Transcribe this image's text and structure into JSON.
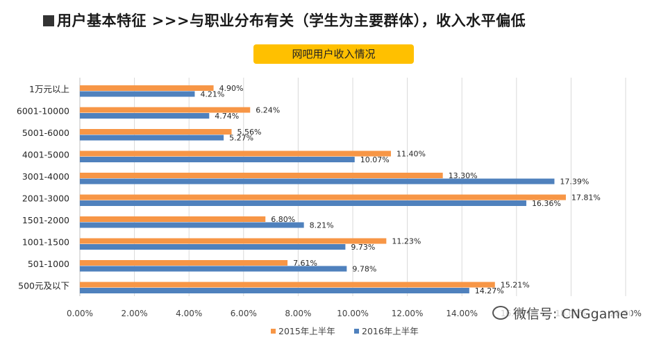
{
  "page": {
    "title": "用户基本特征 >>>与职业分布有关（学生为主要群体），收入水平偏低",
    "watermark": "微信号: CNGgame"
  },
  "chart_data": {
    "type": "bar",
    "orientation": "horizontal",
    "title": "网吧用户收入情况",
    "categories": [
      "1万元以上",
      "6001-10000",
      "5001-6000",
      "4001-5000",
      "3001-4000",
      "2001-3000",
      "1501-2000",
      "1001-1500",
      "501-1000",
      "500元及以下"
    ],
    "series": [
      {
        "name": "2015年上半年",
        "color": "#F79646",
        "values": [
          4.9,
          6.24,
          5.56,
          11.4,
          13.3,
          17.81,
          6.8,
          11.23,
          7.61,
          15.21
        ]
      },
      {
        "name": "2016年上半年",
        "color": "#4F81BD",
        "values": [
          4.21,
          4.74,
          5.27,
          10.07,
          17.39,
          16.36,
          8.21,
          9.73,
          9.78,
          14.27
        ]
      }
    ],
    "data_labels": [
      [
        "4.90%",
        "6.24%",
        "5.56%",
        "11.40%",
        "13.30%",
        "17.81%",
        "6.80%",
        "11.23%",
        "7.61%",
        "15.21%"
      ],
      [
        "4.21%",
        "4.74%",
        "5.27%",
        "10.07%",
        "17.39%",
        "16.36%",
        "8.21%",
        "9.73%",
        "9.78%",
        "14.27%"
      ]
    ],
    "x_ticks": [
      0,
      2,
      4,
      6,
      8,
      10,
      12,
      14,
      16,
      18,
      20
    ],
    "x_tick_labels": [
      "0.00%",
      "2.00%",
      "4.00%",
      "6.00%",
      "8.00%",
      "10.00%",
      "12.00%",
      "14.00%",
      "16.00%",
      "18.00%",
      "20.00%"
    ],
    "xlim": [
      0,
      20
    ],
    "grid": true,
    "legend_position": "bottom"
  }
}
